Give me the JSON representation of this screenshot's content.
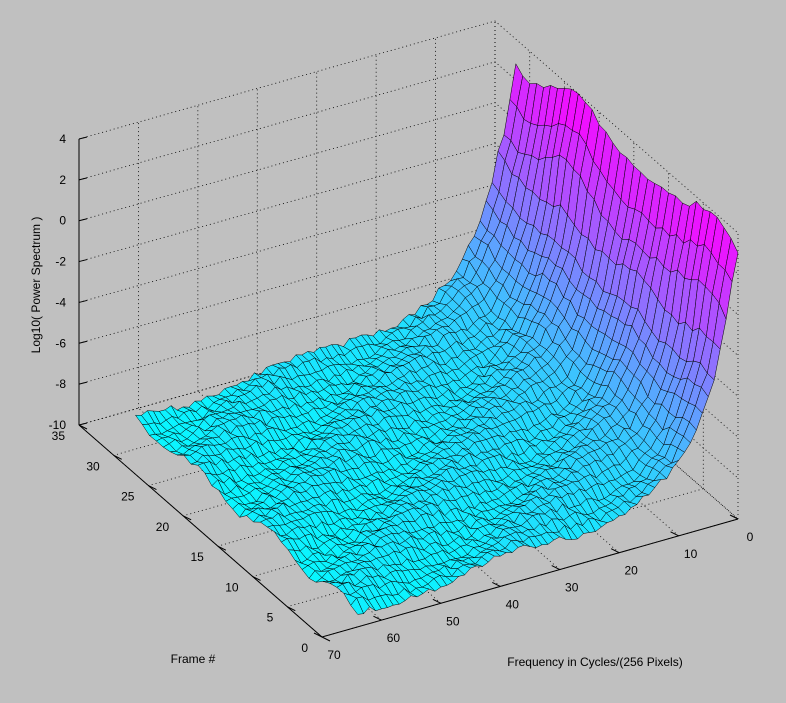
{
  "chart_data": {
    "type": "surface",
    "title": "",
    "xlabel": "Frequency in Cycles/(256 Pixels)",
    "ylabel": "Frame #",
    "zlabel": "Log10( Power Spectrum )",
    "xlim": [
      0,
      70
    ],
    "ylim": [
      0,
      35
    ],
    "zlim": [
      -10,
      4
    ],
    "xticks": [
      "0",
      "10",
      "20",
      "30",
      "40",
      "50",
      "60",
      "70"
    ],
    "yticks": [
      "0",
      "5",
      "10",
      "15",
      "20",
      "25",
      "30",
      "35"
    ],
    "zticks": [
      "4",
      "2",
      "0",
      "-2",
      "-4",
      "-6",
      "-8",
      "-10"
    ],
    "grid": true,
    "colormap": "cool",
    "colormap_colors": [
      "#00ffff",
      "#ff00ff"
    ],
    "background": "#c0c0c0",
    "surface_profile": {
      "frequency": [
        0,
        1,
        2,
        3,
        4,
        6,
        8,
        10,
        14,
        20,
        30,
        40,
        50,
        60,
        64
      ],
      "log10_power": [
        3.2,
        1.5,
        0.0,
        -1.6,
        -3.0,
        -4.6,
        -5.8,
        -6.7,
        -7.5,
        -8.1,
        -8.5,
        -8.8,
        -9.0,
        -9.2,
        -9.3
      ]
    },
    "frames": 32,
    "max_frequency": 64
  }
}
